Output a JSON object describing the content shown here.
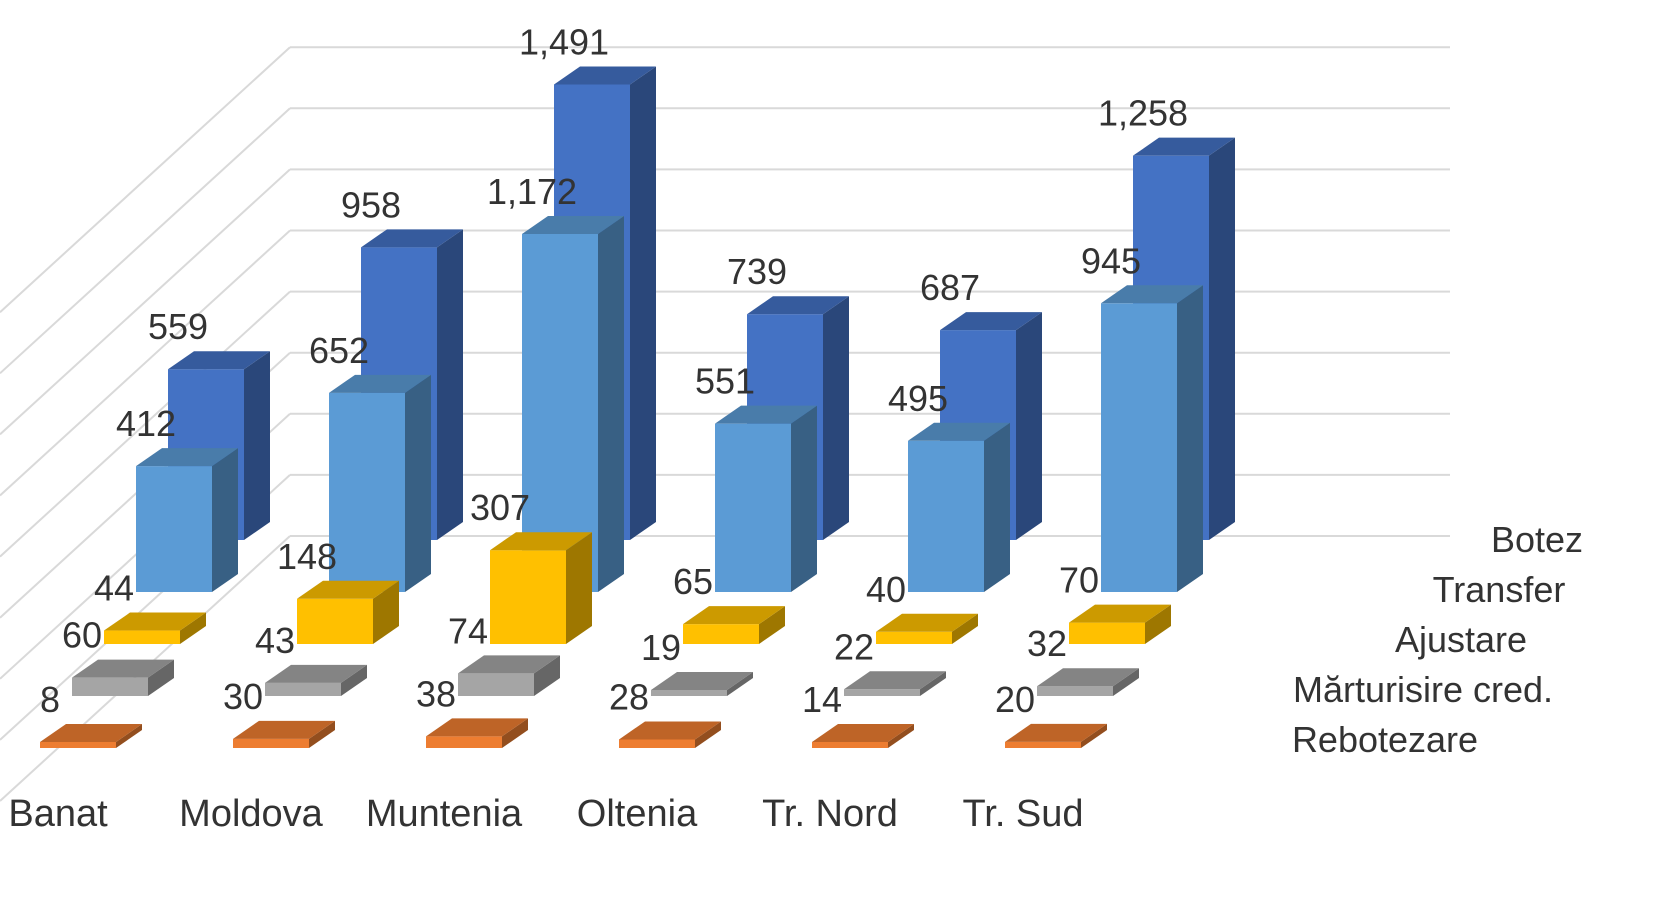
{
  "chart_data": {
    "type": "bar",
    "variant": "3d-column-depth",
    "title": "",
    "xlabel": "",
    "ylabel": "",
    "ylim": [
      0,
      1600
    ],
    "grid": true,
    "categories": [
      "Banat",
      "Moldova",
      "Muntenia",
      "Oltenia",
      "Tr. Nord",
      "Tr. Sud"
    ],
    "series": [
      {
        "name": "Botez",
        "values": [
          559,
          958,
          1491,
          739,
          687,
          1258
        ],
        "value_labels": [
          "559",
          "958",
          "1,491",
          "739",
          "687",
          "1,258"
        ],
        "color": "#4472C4"
      },
      {
        "name": "Transfer",
        "values": [
          412,
          652,
          1172,
          551,
          495,
          945
        ],
        "value_labels": [
          "412",
          "652",
          "1,172",
          "551",
          "495",
          "945"
        ],
        "color": "#5B9BD5"
      },
      {
        "name": "Ajustare",
        "values": [
          44,
          148,
          307,
          65,
          40,
          70
        ],
        "value_labels": [
          "44",
          "148",
          "307",
          "65",
          "40",
          "70"
        ],
        "color": "#FFC000"
      },
      {
        "name": "Mărturisire cred.",
        "values": [
          60,
          43,
          74,
          19,
          22,
          32
        ],
        "value_labels": [
          "60",
          "43",
          "74",
          "19",
          "22",
          "32"
        ],
        "color": "#A5A5A5"
      },
      {
        "name": "Rebotezare",
        "values": [
          8,
          30,
          38,
          28,
          14,
          20
        ],
        "value_labels": [
          "8",
          "30",
          "38",
          "28",
          "14",
          "20"
        ],
        "color": "#ED7D31"
      }
    ]
  }
}
